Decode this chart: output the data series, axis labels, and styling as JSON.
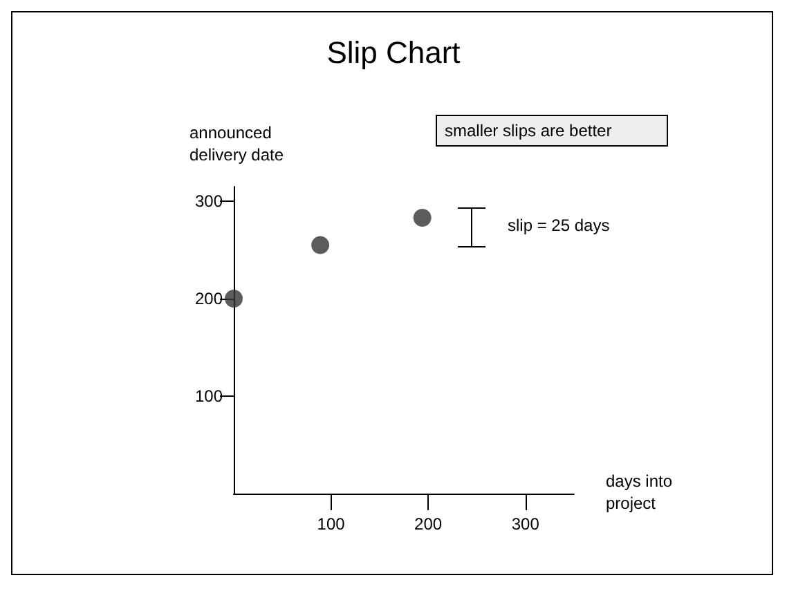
{
  "chart_data": {
    "type": "scatter",
    "title": "Slip Chart",
    "xlabel": "days into project",
    "ylabel": "announced delivery date",
    "x": [
      0,
      89,
      194
    ],
    "values": [
      200,
      255,
      283
    ],
    "color": "#333333",
    "marker": "circle",
    "xlim": [
      0,
      350
    ],
    "ylim": [
      0,
      315
    ],
    "xticks": [
      100,
      200,
      300
    ],
    "yticks": [
      100,
      200,
      300
    ],
    "grid": false,
    "annotations": [
      "smaller slips are better",
      "slip = 25 days"
    ]
  }
}
